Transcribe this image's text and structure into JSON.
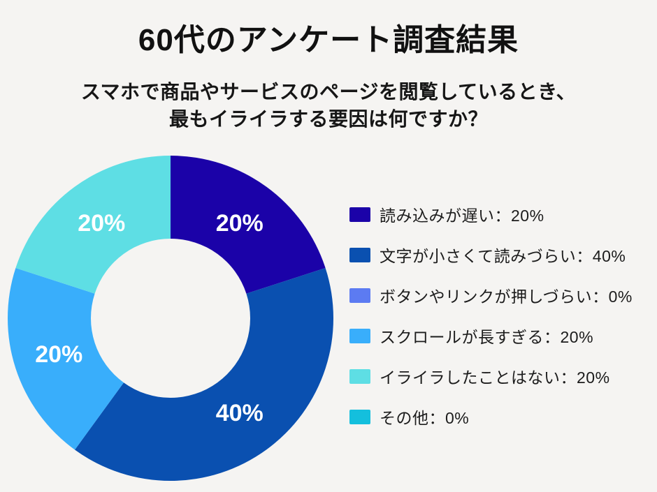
{
  "page": {
    "background": "#F5F4F2",
    "text_color": "#1C1C1C"
  },
  "header": {
    "title": "60代のアンケート調査結果",
    "subtitle_line1": "スマホで商品やサービスのページを閲覧しているとき、",
    "subtitle_line2": "最もイライラする要因は何ですか？"
  },
  "chart_data": {
    "type": "pie",
    "style": "donut",
    "title": "60代のアンケート調査結果",
    "subtitle": "スマホで商品やサービスのページを閲覧しているとき、最もイライラする要因は何ですか？",
    "start_angle_deg": 0,
    "direction": "clockwise",
    "inner_radius_ratio": 0.49,
    "categories": [
      "読み込みが遅い",
      "文字が小さくて読みづらい",
      "ボタンやリンクが押しづらい",
      "スクロールが長すぎる",
      "イライラしたことはない",
      "その他"
    ],
    "values": [
      20,
      40,
      0,
      20,
      20,
      0
    ],
    "colors": [
      "#1B02A8",
      "#0A50B0",
      "#5C7BF2",
      "#39AEFB",
      "#5EDEE4",
      "#14BFDD"
    ],
    "slice_labels": [
      "20%",
      "40%",
      null,
      "20%",
      "20%",
      null
    ],
    "slice_label_color": "#FFFFFF",
    "legend_position": "right",
    "legend_separator": "：",
    "legend_value_suffix": "%"
  }
}
